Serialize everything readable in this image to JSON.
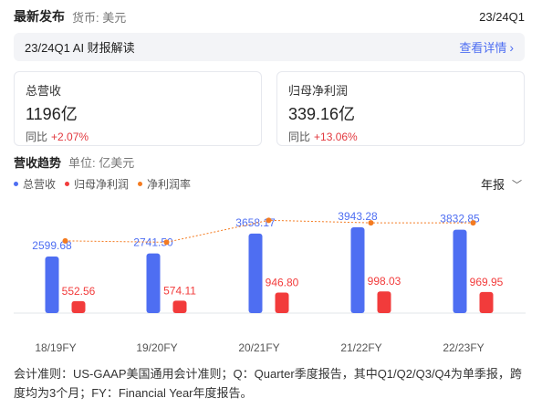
{
  "header": {
    "title": "最新发布",
    "currency": "货币: 美元",
    "period": "23/24Q1"
  },
  "banner": {
    "title": "23/24Q1 AI 财报解读",
    "link": "查看详情"
  },
  "cards": [
    {
      "label": "总营收",
      "value": "1196亿",
      "yoy_label": "同比",
      "yoy": "+2.07%"
    },
    {
      "label": "归母净利润",
      "value": "339.16亿",
      "yoy_label": "同比",
      "yoy": "+13.06%"
    }
  ],
  "section": {
    "title": "营收趋势",
    "unit": "单位: 亿美元"
  },
  "legend": [
    {
      "label": "总营收",
      "color": "#4e6ef2"
    },
    {
      "label": "归母净利润",
      "color": "#f23b3b"
    },
    {
      "label": "净利润率",
      "color": "#f47b20"
    }
  ],
  "period_select": {
    "value": "年报"
  },
  "chart_data": {
    "type": "bar",
    "categories": [
      "18/19FY",
      "19/20FY",
      "20/21FY",
      "21/22FY",
      "22/23FY"
    ],
    "series": [
      {
        "name": "总营收",
        "type": "bar",
        "color": "#4e6ef2",
        "values": [
          2599.68,
          2741.5,
          3658.17,
          3943.28,
          3832.85
        ],
        "labels": [
          "2599.68",
          "2741.50",
          "3658.17",
          "3943.28",
          "3832.85"
        ]
      },
      {
        "name": "归母净利润",
        "type": "bar",
        "color": "#f23b3b",
        "values": [
          552.56,
          574.11,
          946.8,
          998.03,
          969.95
        ],
        "labels": [
          "552.56",
          "574.11",
          "946.80",
          "998.03",
          "969.95"
        ]
      },
      {
        "name": "净利润率",
        "type": "line",
        "color": "#f47b20",
        "values": [
          21.25,
          20.94,
          25.88,
          25.31,
          25.31
        ]
      }
    ],
    "ylim": [
      0,
      4700
    ],
    "line_ylim": [
      5,
      28
    ]
  },
  "footnote": "会计准则：US-GAAP美国通用会计准则；Q：Quarter季度报告，其中Q1/Q2/Q3/Q4为单季报，跨度均为3个月；FY：Financial Year年度报告。"
}
